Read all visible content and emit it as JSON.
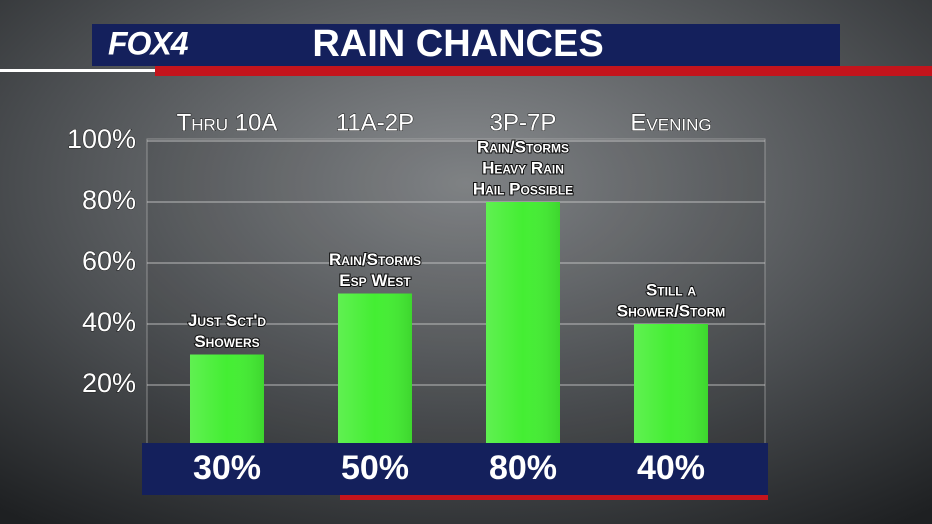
{
  "chart_data": {
    "type": "bar",
    "logo": "FOX4",
    "title": "RAIN CHANCES",
    "categories": [
      "Thru 10A",
      "11A-2P",
      "3P-7P",
      "Evening"
    ],
    "values": [
      30,
      50,
      80,
      40
    ],
    "value_labels": [
      "30%",
      "50%",
      "80%",
      "40%"
    ],
    "annotations": [
      [
        "Just Sct'd",
        "Showers"
      ],
      [
        "Rain/Storms",
        "Esp West"
      ],
      [
        "Rain/Storms",
        "Heavy Rain",
        "Hail Possible"
      ],
      [
        "Still a",
        "Shower/Storm"
      ]
    ],
    "color": "#44ee33",
    "ylim": [
      0,
      100
    ],
    "yticks": [
      {
        "value": 20,
        "label": "20%"
      },
      {
        "value": 40,
        "label": "40%"
      },
      {
        "value": 60,
        "label": "60%"
      },
      {
        "value": 80,
        "label": "80%"
      },
      {
        "value": 100,
        "label": "100%"
      }
    ],
    "grid": true
  }
}
